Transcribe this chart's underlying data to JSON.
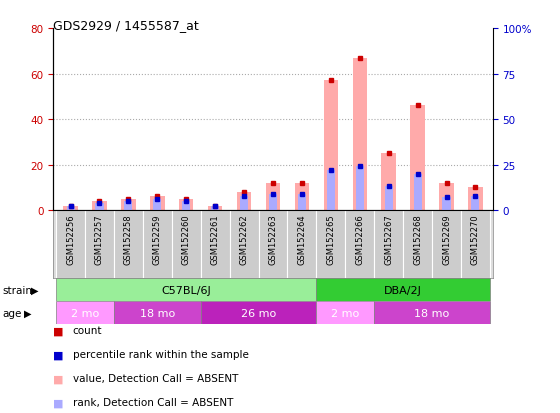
{
  "title": "GDS2929 / 1455587_at",
  "samples": [
    "GSM152256",
    "GSM152257",
    "GSM152258",
    "GSM152259",
    "GSM152260",
    "GSM152261",
    "GSM152262",
    "GSM152263",
    "GSM152264",
    "GSM152265",
    "GSM152266",
    "GSM152267",
    "GSM152268",
    "GSM152269",
    "GSM152270"
  ],
  "count_values": [
    2,
    4,
    5,
    6,
    5,
    2,
    8,
    12,
    12,
    57,
    67,
    25,
    46,
    12,
    10
  ],
  "rank_values": [
    2,
    4,
    5,
    6,
    5,
    2,
    8,
    9,
    9,
    22,
    24,
    13,
    20,
    7,
    8
  ],
  "ylim_left": [
    0,
    80
  ],
  "ylim_right": [
    0,
    100
  ],
  "yticks_left": [
    0,
    20,
    40,
    60,
    80
  ],
  "yticks_right": [
    0,
    25,
    50,
    75,
    100
  ],
  "strain_labels": [
    {
      "label": "C57BL/6J",
      "start": 0,
      "end": 8,
      "color": "#99ee99"
    },
    {
      "label": "DBA/2J",
      "start": 9,
      "end": 14,
      "color": "#33cc33"
    }
  ],
  "age_labels": [
    {
      "label": "2 mo",
      "start": 0,
      "end": 1,
      "color": "#ff99ff"
    },
    {
      "label": "18 mo",
      "start": 2,
      "end": 4,
      "color": "#cc44cc"
    },
    {
      "label": "26 mo",
      "start": 5,
      "end": 8,
      "color": "#bb22bb"
    },
    {
      "label": "2 mo",
      "start": 9,
      "end": 10,
      "color": "#ff99ff"
    },
    {
      "label": "18 mo",
      "start": 11,
      "end": 14,
      "color": "#cc44cc"
    }
  ],
  "color_count": "#cc0000",
  "color_rank": "#0000cc",
  "color_count_absent": "#ffaaaa",
  "color_rank_absent": "#aaaaff",
  "grid_color": "#888888",
  "tick_label_color_left": "#cc0000",
  "tick_label_color_right": "#0000cc",
  "legend_items": [
    {
      "label": "count",
      "color": "#cc0000"
    },
    {
      "label": "percentile rank within the sample",
      "color": "#0000cc"
    },
    {
      "label": "value, Detection Call = ABSENT",
      "color": "#ffaaaa"
    },
    {
      "label": "rank, Detection Call = ABSENT",
      "color": "#aaaaff"
    }
  ]
}
